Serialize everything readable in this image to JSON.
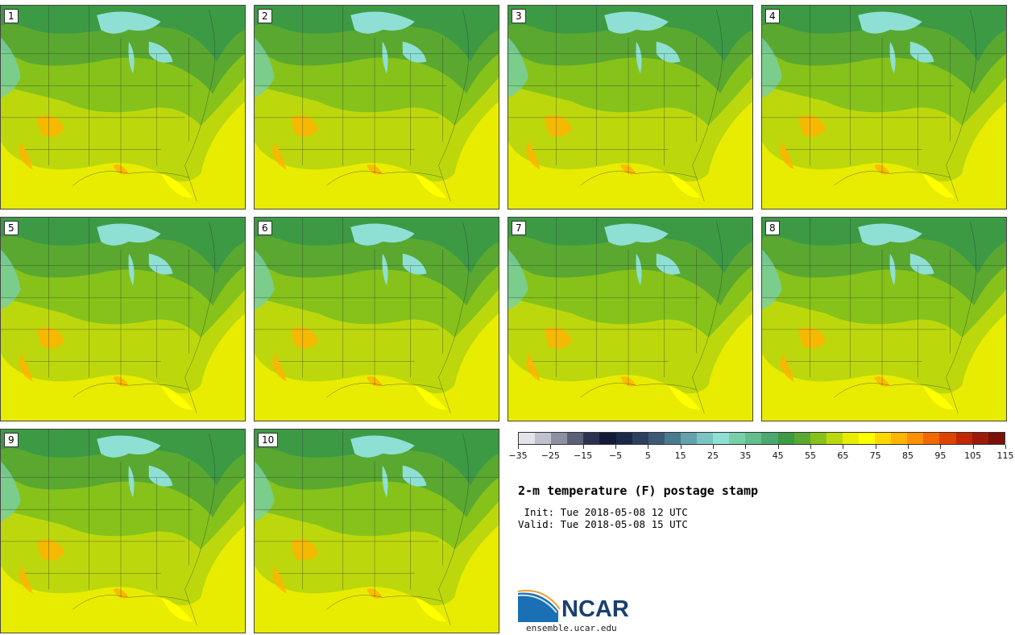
{
  "title": "2-m temperature (F) postage stamp",
  "init": " Init: Tue 2018-05-08 12 UTC",
  "valid": "Valid: Tue 2018-05-08 15 UTC",
  "site": "ensemble.ucar.edu",
  "logo_text": "NCAR",
  "panels": [
    "1",
    "2",
    "3",
    "4",
    "5",
    "6",
    "7",
    "8",
    "9",
    "10"
  ],
  "colorbar": {
    "labels": [
      "−35",
      "−25",
      "−15",
      "−5",
      "5",
      "15",
      "25",
      "35",
      "45",
      "55",
      "65",
      "75",
      "85",
      "95",
      "105",
      "115"
    ],
    "colors": [
      "#e2e4e9",
      "#bfc2cc",
      "#8d90a2",
      "#5b5f78",
      "#2d3150",
      "#121a38",
      "#1a2848",
      "#2a405e",
      "#3a5a76",
      "#4a7a8e",
      "#64a2ae",
      "#7cc4c4",
      "#8ee0d4",
      "#78d0a8",
      "#62be8a",
      "#4aa870",
      "#3c9a44",
      "#5aa830",
      "#86c21a",
      "#bcd80c",
      "#e8ec00",
      "#ffff00",
      "#ffd800",
      "#ffb400",
      "#ff9000",
      "#f06a00",
      "#dc4400",
      "#c02800",
      "#9c1a08",
      "#7a1008"
    ]
  },
  "map_colors": {
    "green_dark": "#3c9a44",
    "green_mid": "#5aa830",
    "green_light": "#86c21a",
    "yellow_green": "#bcd80c",
    "yellow": "#e8ec00",
    "bright_yellow": "#ffff00",
    "orange": "#ffb400",
    "teal": "#78d0a8",
    "lake": "#8ee0d4"
  }
}
